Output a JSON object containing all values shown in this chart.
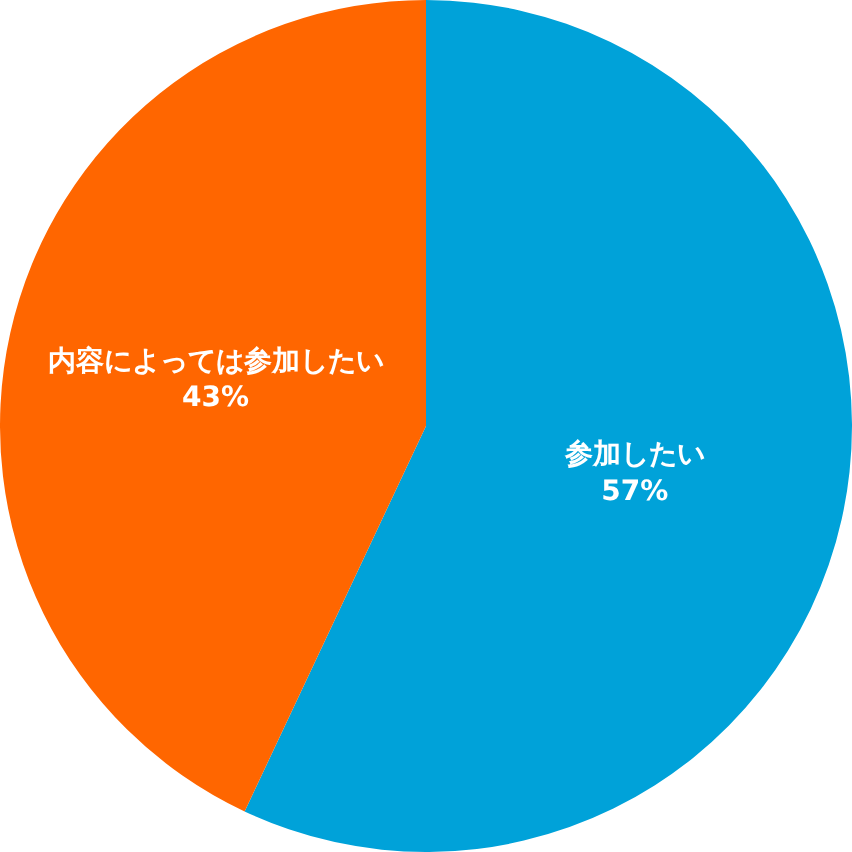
{
  "chart_data": {
    "type": "pie",
    "categories": [
      "参加したい",
      "内容によっては参加したい"
    ],
    "values": [
      57,
      43
    ],
    "colors": [
      "#00a2d9",
      "#ff6600"
    ],
    "value_labels": [
      "57%",
      "43%"
    ],
    "legend": false
  }
}
